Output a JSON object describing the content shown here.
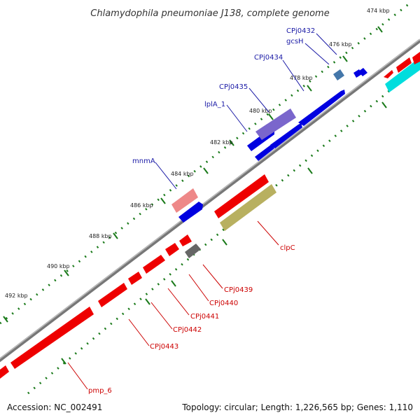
{
  "title": "Chlamydophila pneumoniae J138, complete genome",
  "footer": {
    "accession": "Accession: NC_002491",
    "topology": "Topology: circular; Length: 1,226,565 bp; Genes: 1,110"
  },
  "ticks": [
    "474 kbp",
    "476 kbp",
    "478 kbp",
    "480 kbp",
    "482 kbp",
    "484 kbp",
    "486 kbp",
    "488 kbp",
    "490 kbp",
    "492 kbp"
  ],
  "genes_forward": [
    "CPj0432",
    "gcsH",
    "CPj0434",
    "CPj0435",
    "lplA_1",
    "mnmA"
  ],
  "genes_reverse": [
    "clpC",
    "CPj0439",
    "CPj0440",
    "CPj0441",
    "CPj0442",
    "CPj0443",
    "pmp_6"
  ],
  "colors": {
    "forward_label": "#1a1aa6",
    "reverse_label": "#cc0000",
    "cds_forward": "#0000e0",
    "cds_reverse": "#ee0000",
    "backbone": "#888888",
    "tick_dots": "#1a7a1a",
    "cyan": "#00dddd",
    "olive": "#b8b060",
    "purple": "#7a66cc",
    "pink": "#ee8888",
    "gray_feature": "#666666",
    "steel": "#4477aa"
  }
}
